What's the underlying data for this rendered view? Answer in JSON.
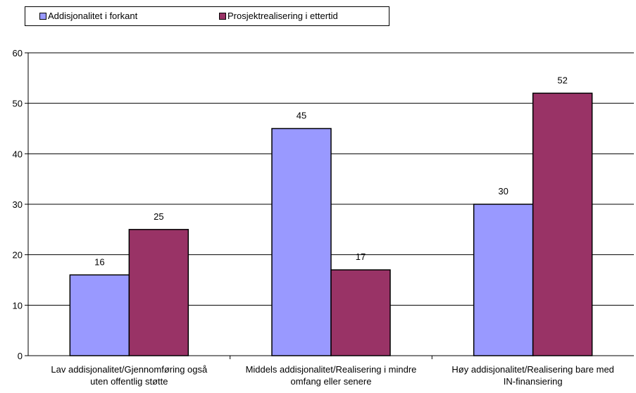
{
  "chart_data": {
    "type": "bar",
    "categories": [
      [
        "Lav addisjonalitet/Gjennomføring også",
        "uten offentlig støtte"
      ],
      [
        "Middels addisjonalitet/Realisering i mindre",
        "omfang eller senere"
      ],
      [
        "Høy addisjonalitet/Realisering bare med",
        "IN-finansiering"
      ]
    ],
    "series": [
      {
        "name": "Addisjonalitet i forkant",
        "values": [
          16,
          45,
          30
        ],
        "color": "#9999ff"
      },
      {
        "name": "Prosjektrealisering i ettertid",
        "values": [
          25,
          17,
          52
        ],
        "color": "#993366"
      }
    ],
    "ylim": [
      0,
      60
    ],
    "yticks": [
      0,
      10,
      20,
      30,
      40,
      50,
      60
    ],
    "title": "",
    "xlabel": "",
    "ylabel": "",
    "grid": true,
    "legend_position": "top-left"
  }
}
